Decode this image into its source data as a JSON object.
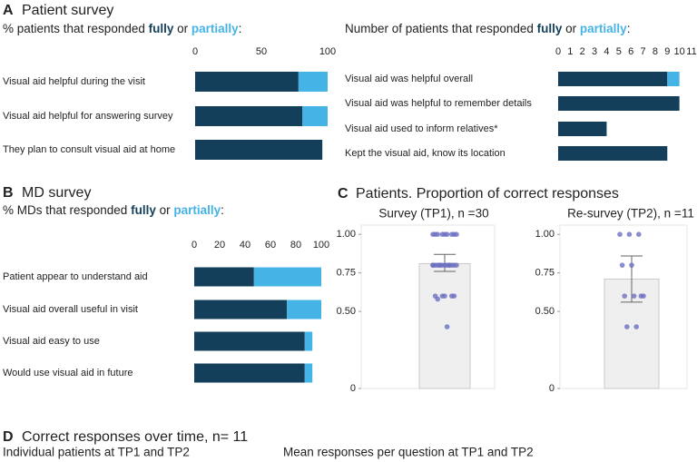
{
  "panels": [
    {
      "label": "A",
      "title": "Patient survey"
    },
    {
      "label": "B",
      "title": "MD survey"
    },
    {
      "label": "C",
      "title": "Patients. Proportion of correct responses"
    },
    {
      "label": "D",
      "title": "Correct responses over time, n= 11",
      "subtitles": [
        "Individual patients at TP1 and TP2",
        "Mean responses per question at TP1 and TP2"
      ]
    }
  ],
  "chart_data": [
    {
      "type": "bar",
      "orientation": "horizontal",
      "stacked": true,
      "title_parts": [
        "% patients that responded ",
        " or ",
        ":"
      ],
      "categories": [
        "Visual aid helpful during the visit",
        "Visual aid helpful for answering survey",
        "They plan to consult visual aid at home"
      ],
      "series": [
        {
          "name": "fully",
          "color": "#143f5a",
          "values": [
            78,
            81,
            96
          ]
        },
        {
          "name": "partially",
          "color": "#45b3e6",
          "values": [
            22,
            19,
            0
          ]
        }
      ],
      "xlim": [
        0,
        100
      ],
      "xticks": [
        0,
        50,
        100
      ]
    },
    {
      "type": "bar",
      "orientation": "horizontal",
      "stacked": true,
      "title_parts": [
        "Number of patients that responded ",
        " or ",
        ":"
      ],
      "categories": [
        "Visual aid was helpful overall",
        "Visual aid was helpful to remember details",
        "Visual aid used to inform relatives*",
        "Kept the visual aid, know its location"
      ],
      "series": [
        {
          "name": "fully",
          "color": "#143f5a",
          "values": [
            9,
            10,
            4,
            9
          ]
        },
        {
          "name": "partially",
          "color": "#45b3e6",
          "values": [
            1,
            0,
            0,
            0
          ]
        }
      ],
      "xlim": [
        0,
        11
      ],
      "xticks": [
        0,
        1,
        2,
        3,
        4,
        5,
        6,
        7,
        8,
        9,
        10,
        11
      ]
    },
    {
      "type": "bar",
      "orientation": "horizontal",
      "stacked": true,
      "title_parts": [
        "% MDs that responded ",
        " or ",
        ":"
      ],
      "categories": [
        "Patient appear to understand aid",
        "Visual aid overall useful in visit",
        "Visual aid easy to use",
        "Would use visual aid in future"
      ],
      "series": [
        {
          "name": "fully",
          "color": "#143f5a",
          "values": [
            47,
            73,
            87,
            87
          ]
        },
        {
          "name": "partially",
          "color": "#45b3e6",
          "values": [
            53,
            27,
            6,
            6
          ]
        }
      ],
      "xlim": [
        0,
        100
      ],
      "xticks": [
        0,
        20,
        40,
        60,
        80,
        100
      ]
    },
    {
      "type": "bar",
      "orientation": "vertical",
      "title": "Survey (TP1), n =30",
      "values": [
        0.81
      ],
      "ci": [
        0.76,
        0.87
      ],
      "color": "#efefef",
      "point_color": "#6b6fc0",
      "points": [
        1,
        1,
        1,
        1,
        1,
        1,
        1,
        1,
        1,
        0.8,
        0.8,
        0.8,
        0.8,
        0.8,
        0.8,
        0.8,
        0.8,
        0.8,
        0.8,
        0.8,
        0.8,
        0.8,
        0.8,
        0.6,
        0.6,
        0.6,
        0.6,
        0.6,
        0.58,
        0.4
      ],
      "ylim": [
        0,
        1.06
      ],
      "yticks": [
        0,
        {
          "value": 0.5,
          "label": "0.50"
        },
        0.75,
        {
          "value": 1,
          "label": "1.00"
        }
      ]
    },
    {
      "type": "bar",
      "orientation": "vertical",
      "title": "Re-survey (TP2), n =11",
      "values": [
        0.71
      ],
      "ci": [
        0.56,
        0.86
      ],
      "color": "#efefef",
      "point_color": "#6b6fc0",
      "points": [
        1,
        1,
        1,
        0.8,
        0.8,
        0.6,
        0.6,
        0.6,
        0.6,
        0.4,
        0.4
      ],
      "ylim": [
        0,
        1.06
      ],
      "yticks": [
        0,
        {
          "value": 0.5,
          "label": "0.50"
        },
        0.75,
        {
          "value": 1,
          "label": "1.00"
        }
      ]
    }
  ]
}
